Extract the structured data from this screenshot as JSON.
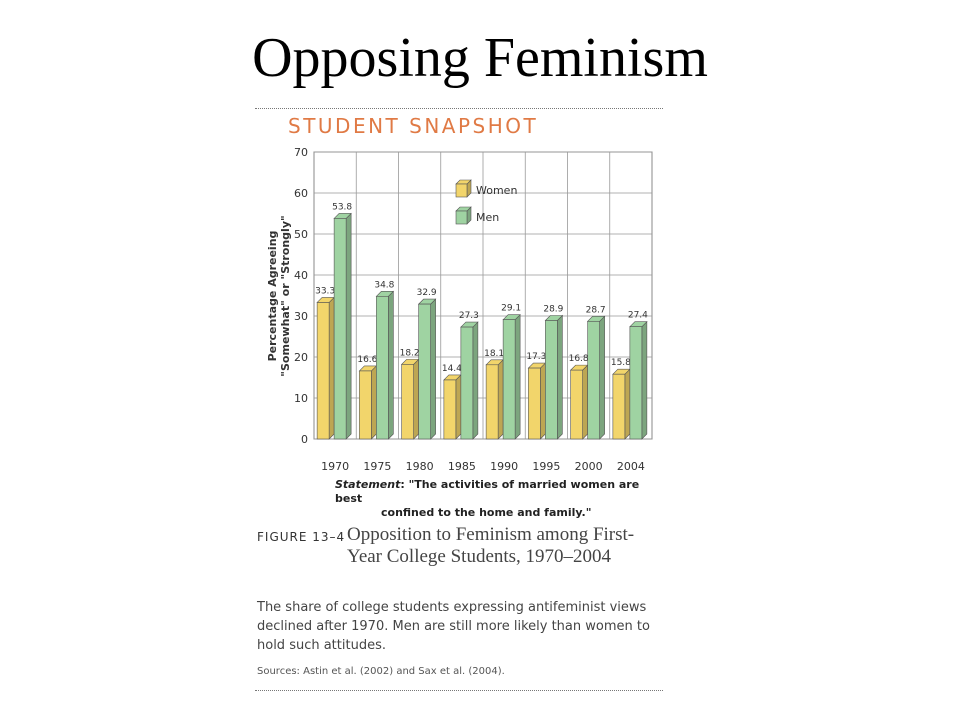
{
  "slide_title": "Opposing Feminism",
  "snapshot_heading": "STUDENT SNAPSHOT",
  "chart_data": {
    "type": "bar",
    "categories": [
      "1970",
      "1975",
      "1980",
      "1985",
      "1990",
      "1995",
      "2000",
      "2004"
    ],
    "series": [
      {
        "name": "Women",
        "values": [
          33.3,
          16.6,
          18.2,
          14.4,
          18.1,
          17.3,
          16.8,
          15.8
        ],
        "labels": [
          "33.3",
          "16.6",
          "18.2",
          "14.4",
          "18.1",
          "17.3",
          "16.8",
          "15.8"
        ],
        "color": "#f2d56b"
      },
      {
        "name": "Men",
        "values": [
          53.8,
          34.8,
          32.9,
          27.3,
          29.1,
          28.9,
          28.7,
          27.4
        ],
        "labels": [
          "53.8",
          "34.8",
          "32.9",
          "27.3",
          "29.1",
          "28.9",
          "28.7",
          "27.4"
        ],
        "color": "#9fd3a2"
      }
    ],
    "ylabel_line1": "Percentage Agreeing",
    "ylabel_line2": "\"Somewhat\" or \"Strongly\"",
    "ylim": [
      0,
      70
    ],
    "yticks": [
      "0",
      "10",
      "20",
      "30",
      "40",
      "50",
      "60",
      "70"
    ],
    "grid": true,
    "legend_position": "top-center"
  },
  "statement": {
    "label": "Statement",
    "line1": ": \"The activities of married women are best",
    "line2": "confined to the home and family.\""
  },
  "figure": {
    "label": "FIGURE 13–4",
    "title": "Opposition to Feminism among First-Year College Students, 1970–2004",
    "description": "The share of college students expressing antifeminist views declined after 1970. Men are still more likely than women to hold such attitudes.",
    "sources": "Sources: Astin et al. (2002) and Sax et al. (2004)."
  }
}
